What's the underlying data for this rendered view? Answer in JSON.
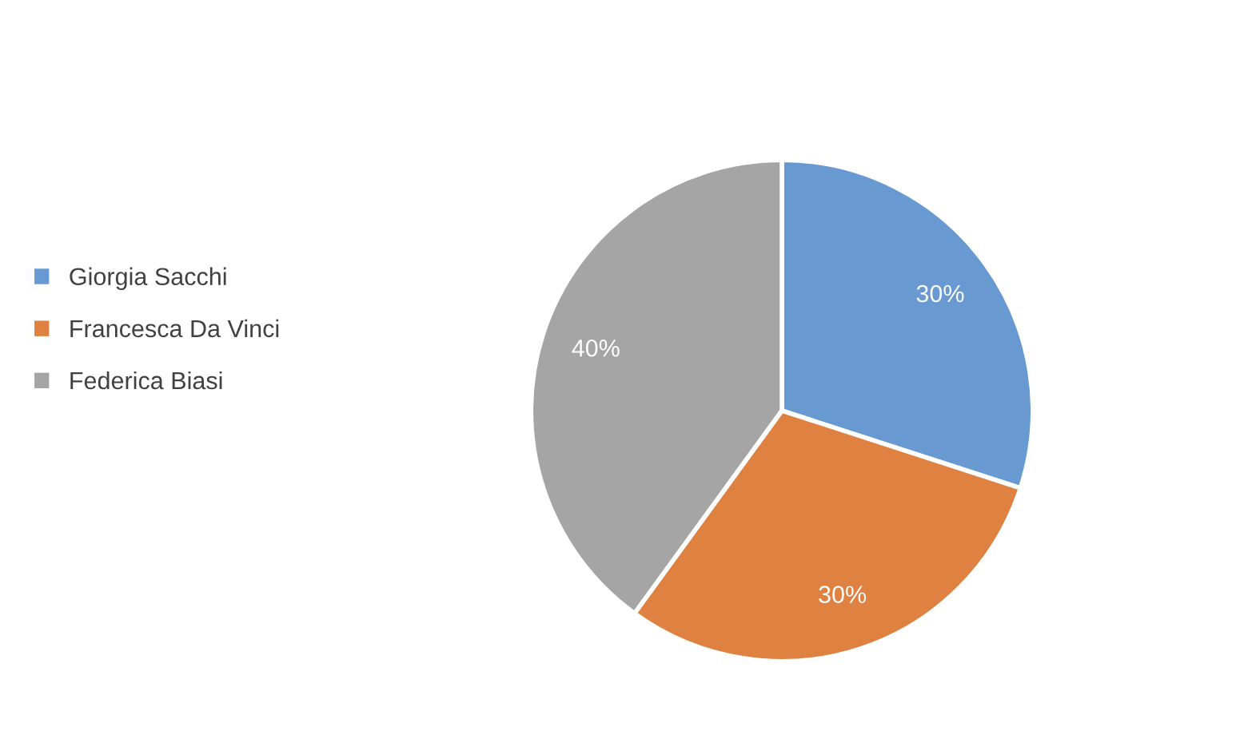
{
  "chart_data": {
    "type": "pie",
    "categories": [
      "Giorgia Sacchi",
      "Francesca Da Vinci",
      "Federica Biasi"
    ],
    "values": [
      30,
      30,
      40
    ],
    "colors": [
      "#6899d0",
      "#df8141",
      "#a5a5a5"
    ],
    "value_labels": [
      "30%",
      "30%",
      "40%"
    ],
    "legend": "left"
  }
}
